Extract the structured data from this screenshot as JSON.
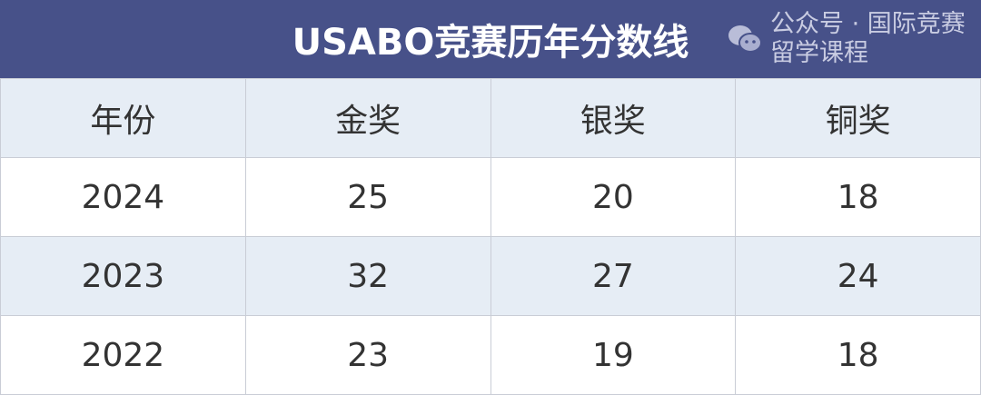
{
  "title": "USABO竞赛历年分数线",
  "headers": [
    "年份",
    "金奖",
    "银奖",
    "铜奖"
  ],
  "rows": [
    [
      "2024",
      "25",
      "20",
      "18"
    ],
    [
      "2023",
      "32",
      "27",
      "24"
    ],
    [
      "2022",
      "23",
      "19",
      "18"
    ]
  ],
  "watermark": {
    "icon": "wechat-icon",
    "text": "公众号 · 国际竞赛留学课程"
  },
  "colors": {
    "title_bg": "#475189",
    "header_bg": "#e6edf5"
  }
}
